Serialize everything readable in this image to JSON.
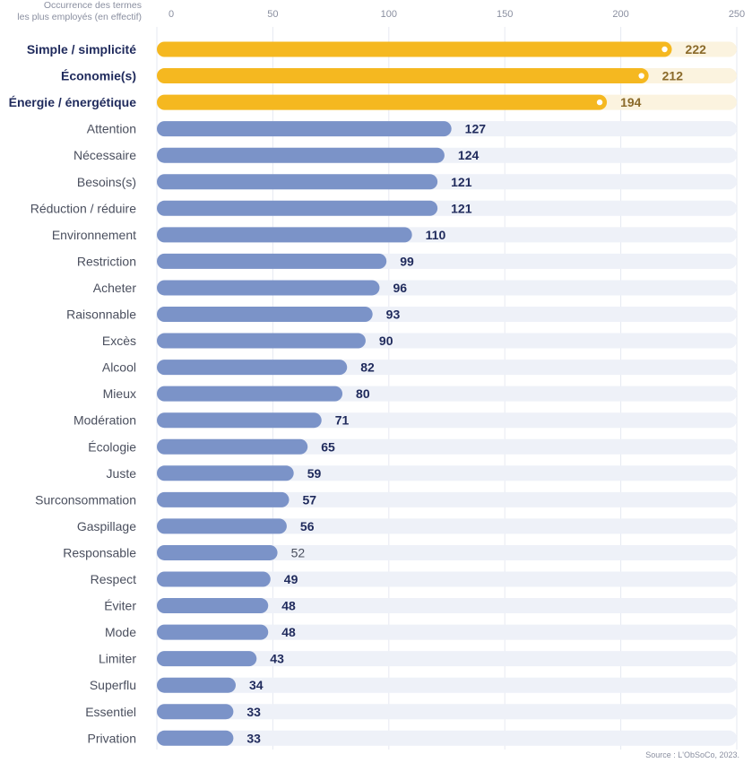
{
  "axis_note": [
    "Occurrence des termes",
    "les plus employés (en effectif)"
  ],
  "source": "Source : L'ObSoCo, 2023.",
  "colors": {
    "highlight": "#f5b820",
    "highlight_track": "#fbf3df",
    "highlight_value": "#8a6a2a",
    "bar": "#7b93c8",
    "track": "#eef1f8",
    "label_highlight": "#1f2a5c",
    "label": "#4a4f5e",
    "value": "#1f2a5c",
    "tick": "#8a8fa0",
    "grid": "#e6e9f2"
  },
  "chart_data": {
    "type": "bar",
    "orientation": "horizontal",
    "xlim": [
      0,
      250
    ],
    "ticks": [
      0,
      50,
      100,
      150,
      200,
      250
    ],
    "grid": true,
    "categories": [
      "Simple / simplicité",
      "Économie(s)",
      "Énergie / énergétique",
      "Attention",
      "Nécessaire",
      "Besoins(s)",
      "Réduction / réduire",
      "Environnement",
      "Restriction",
      "Acheter",
      "Raisonnable",
      "Excès",
      "Alcool",
      "Mieux",
      "Modération",
      "Écologie",
      "Juste",
      "Surconsommation",
      "Gaspillage",
      "Responsable",
      "Respect",
      "Éviter",
      "Mode",
      "Limiter",
      "Superflu",
      "Essentiel",
      "Privation"
    ],
    "values": [
      222,
      212,
      194,
      127,
      124,
      121,
      121,
      110,
      99,
      96,
      93,
      90,
      82,
      80,
      71,
      65,
      59,
      57,
      56,
      52,
      49,
      48,
      48,
      43,
      34,
      33,
      33
    ],
    "highlighted": [
      true,
      true,
      true,
      false,
      false,
      false,
      false,
      false,
      false,
      false,
      false,
      false,
      false,
      false,
      false,
      false,
      false,
      false,
      false,
      false,
      false,
      false,
      false,
      false,
      false,
      false,
      false
    ],
    "value_labels": [
      "222",
      "212",
      "194",
      "127",
      "124",
      "121",
      "121",
      "110",
      "99",
      "96",
      "93",
      "90",
      "82",
      "80",
      "71",
      "65",
      "59",
      "57",
      "56",
      "52",
      "49",
      "48",
      "48",
      "43",
      "34",
      "33",
      "33"
    ]
  }
}
